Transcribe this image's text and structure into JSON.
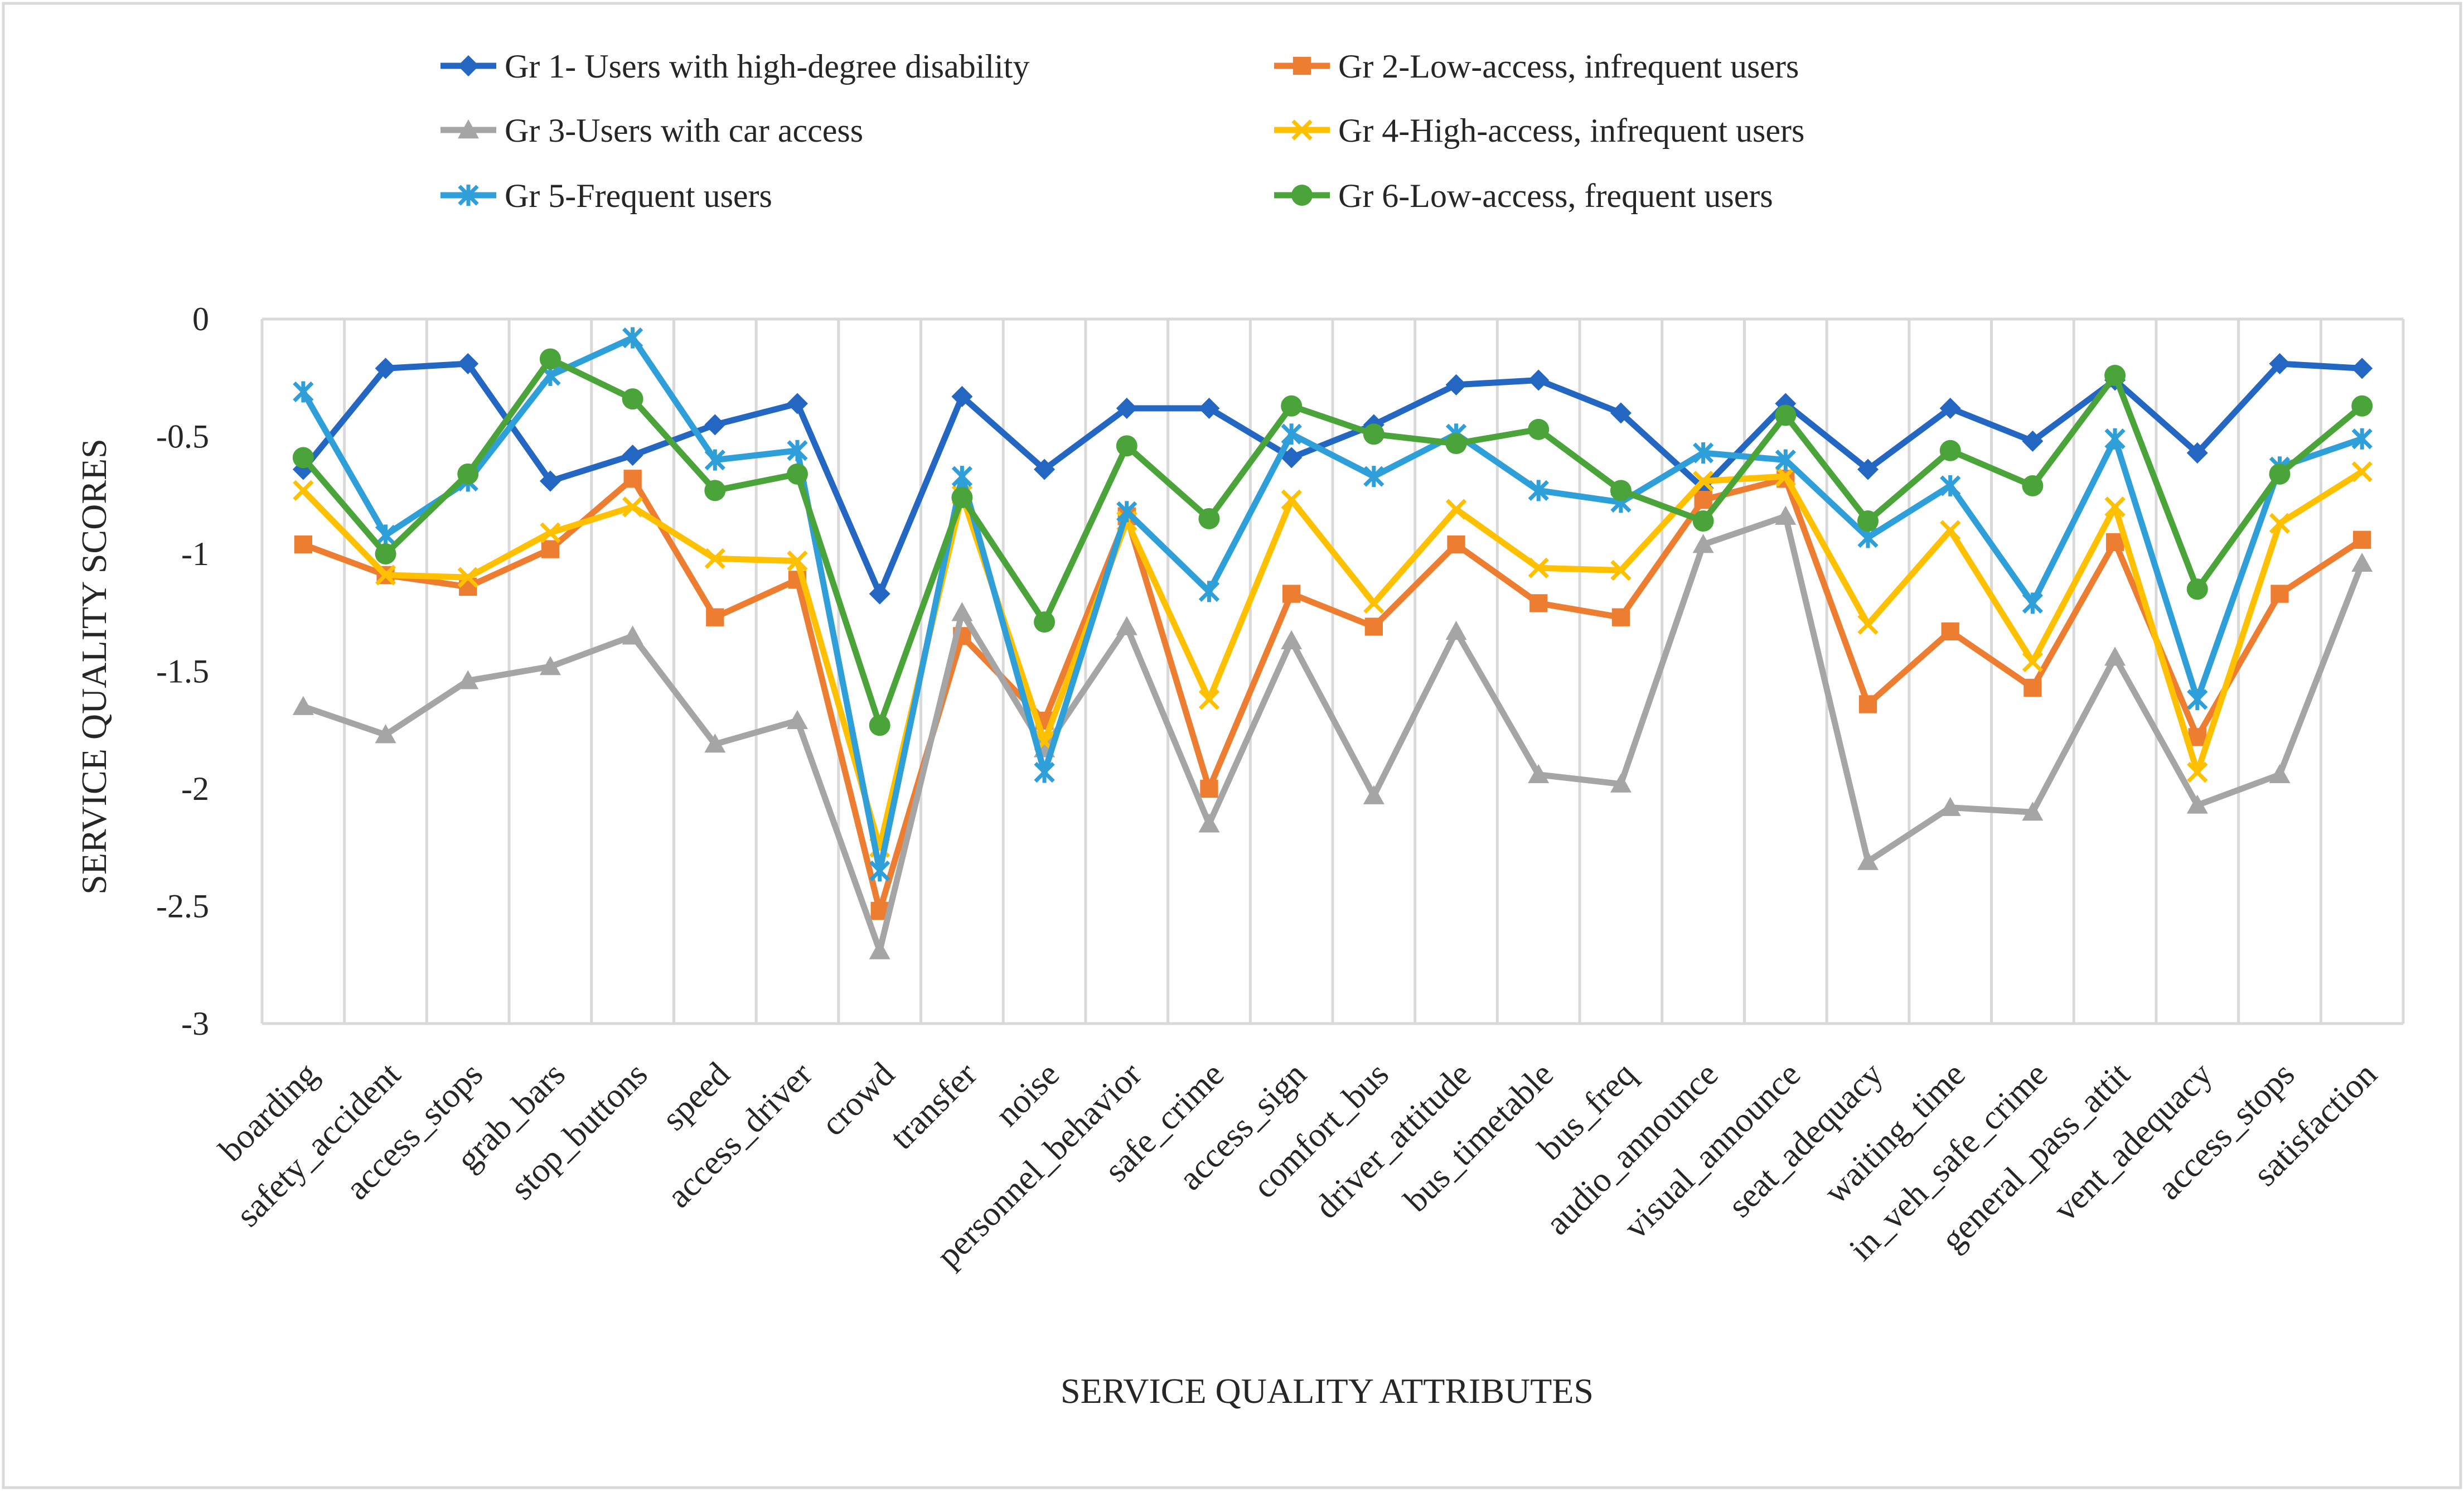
{
  "chart_data": {
    "type": "line",
    "title": "",
    "xlabel": "SERVICE QUALITY ATTRIBUTES",
    "ylabel": "SERVICE QUALITY SCORES",
    "ylim": [
      -3,
      0
    ],
    "yticks": [
      0,
      -0.5,
      -1,
      -1.5,
      -2,
      -2.5,
      -3
    ],
    "ytick_labels": [
      "0",
      "-0.5",
      "-1",
      "-1.5",
      "-2",
      "-2.5",
      "-3"
    ],
    "grid": "vertical",
    "legend_position": "top",
    "categories": [
      "boarding",
      "safety_accident",
      "access_stops",
      "grab_bars",
      "stop_buttons",
      "speed",
      "access_driver",
      "crowd",
      "transfer",
      "noise",
      "personnel_behavior",
      "safe_crime",
      "access_sign",
      "comfort_bus",
      "driver_attitude",
      "bus_timetable",
      "bus_freq",
      "audio_announce",
      "visual_announce",
      "seat_adequacy",
      "waiting_time",
      "in_veh_safe_crime",
      "general_pass_attit",
      "vent_adequacy",
      "access_stops",
      "satisfaction"
    ],
    "series": [
      {
        "name": "Gr 1- Users with high-degree disability",
        "color": "#2367c2",
        "marker": "diamond",
        "values": [
          -0.64,
          -0.21,
          -0.19,
          -0.69,
          -0.58,
          -0.45,
          -0.36,
          -1.17,
          -0.33,
          -0.64,
          -0.38,
          -0.38,
          -0.59,
          -0.45,
          -0.28,
          -0.26,
          -0.4,
          -0.72,
          -0.36,
          -0.64,
          -0.38,
          -0.52,
          -0.26,
          -0.57,
          -0.19,
          -0.21
        ]
      },
      {
        "name": "Gr 2-Low-access, infrequent users",
        "color": "#ed7d31",
        "marker": "square",
        "values": [
          -0.96,
          -1.09,
          -1.14,
          -0.98,
          -0.68,
          -1.27,
          -1.11,
          -2.52,
          -1.35,
          -1.71,
          -0.84,
          -2.0,
          -1.17,
          -1.31,
          -0.96,
          -1.21,
          -1.27,
          -0.77,
          -0.68,
          -1.64,
          -1.33,
          -1.57,
          -0.95,
          -1.78,
          -1.17,
          -0.94
        ]
      },
      {
        "name": "Gr 3-Users with car access",
        "color": "#a5a5a5",
        "marker": "triangle",
        "values": [
          -1.65,
          -1.77,
          -1.54,
          -1.48,
          -1.35,
          -1.81,
          -1.71,
          -2.69,
          -1.25,
          -1.83,
          -1.31,
          -2.15,
          -1.37,
          -2.03,
          -1.33,
          -1.94,
          -1.98,
          -0.96,
          -0.84,
          -2.31,
          -2.08,
          -2.1,
          -1.44,
          -2.07,
          -1.94,
          -1.04
        ]
      },
      {
        "name": "Gr 4-High-access, infrequent users",
        "color": "#ffc000",
        "marker": "x",
        "values": [
          -0.73,
          -1.09,
          -1.1,
          -0.91,
          -0.8,
          -1.02,
          -1.03,
          -2.25,
          -0.75,
          -1.8,
          -0.86,
          -1.62,
          -0.77,
          -1.21,
          -0.81,
          -1.06,
          -1.07,
          -0.69,
          -0.67,
          -1.3,
          -0.9,
          -1.46,
          -0.8,
          -1.93,
          -0.87,
          -0.65
        ]
      },
      {
        "name": "Gr 5-Frequent users",
        "color": "#2e9fd8",
        "marker": "star",
        "values": [
          -0.31,
          -0.92,
          -0.69,
          -0.24,
          -0.08,
          -0.6,
          -0.56,
          -2.35,
          -0.67,
          -1.93,
          -0.82,
          -1.16,
          -0.49,
          -0.67,
          -0.49,
          -0.73,
          -0.78,
          -0.57,
          -0.6,
          -0.93,
          -0.71,
          -1.21,
          -0.51,
          -1.62,
          -0.63,
          -0.51
        ]
      },
      {
        "name": "Gr 6-Low-access, frequent users",
        "color": "#4aa439",
        "marker": "circle",
        "values": [
          -0.59,
          -1.0,
          -0.66,
          -0.17,
          -0.34,
          -0.73,
          -0.66,
          -1.73,
          -0.76,
          -1.29,
          -0.54,
          -0.85,
          -0.37,
          -0.49,
          -0.53,
          -0.47,
          -0.73,
          -0.86,
          -0.41,
          -0.86,
          -0.56,
          -0.71,
          -0.24,
          -1.15,
          -0.66,
          -0.37
        ]
      }
    ]
  }
}
